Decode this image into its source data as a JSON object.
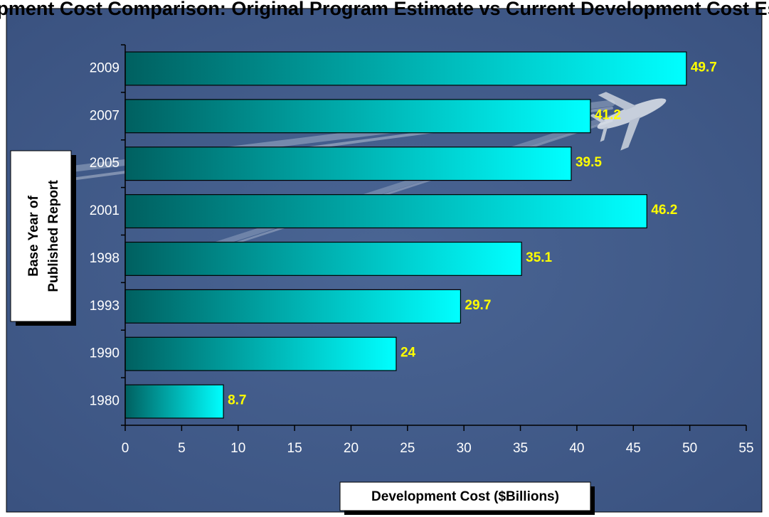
{
  "chart_data": {
    "type": "bar",
    "orientation": "horizontal",
    "title": "Development Cost Comparison: Original Program Estimate vs Current Development Cost Estimate",
    "xlabel": "Development Cost ($Billions)",
    "ylabel": "Base Year of Published Report",
    "ylabel_lines": [
      "Base Year of",
      "Published Report"
    ],
    "categories": [
      "1980",
      "1990",
      "1993",
      "1998",
      "2001",
      "2005",
      "2007",
      "2009"
    ],
    "values": [
      8.7,
      24,
      29.7,
      35.1,
      46.2,
      39.5,
      41.2,
      49.7
    ],
    "value_labels": [
      "8.7",
      "24",
      "29.7",
      "35.1",
      "46.2",
      "39.5",
      "41.2",
      "49.7"
    ],
    "xlim": [
      0,
      55
    ],
    "xticks": [
      0,
      5,
      10,
      15,
      20,
      25,
      30,
      35,
      40,
      45,
      50,
      55
    ],
    "grid": false,
    "legend": "none",
    "colors": {
      "background": "#3f5887",
      "bar_start": "#006060",
      "bar_end": "#00ffff",
      "data_label": "#ffff00",
      "tick_label": "#ffffff",
      "axis": "#000000"
    }
  }
}
